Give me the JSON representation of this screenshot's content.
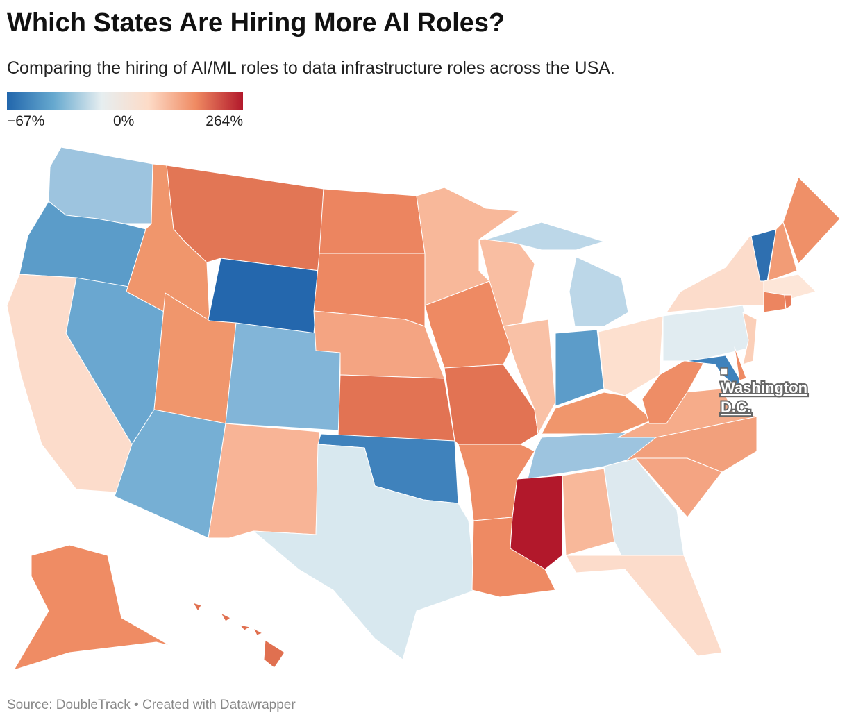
{
  "title": "Which States Are Hiring More AI Roles?",
  "subtitle": "Comparing the hiring of AI/ML roles to data infrastructure roles across the USA.",
  "legend": {
    "min_label": "−67%",
    "mid_label": "0%",
    "max_label": "264%",
    "colors": [
      "#2166ac",
      "#67a9cf",
      "#e6eef0",
      "#fddbc7",
      "#ef8a62",
      "#b2182b"
    ]
  },
  "annotation": {
    "line1": "Washington",
    "line2": "D.C."
  },
  "footer": "Source: DoubleTrack • Created with Datawrapper",
  "states": [
    {
      "id": "WA",
      "color": "#9dc4df"
    },
    {
      "id": "OR",
      "color": "#5b9cc9"
    },
    {
      "id": "CA",
      "color": "#fcdccb"
    },
    {
      "id": "NV",
      "color": "#6aa7d0"
    },
    {
      "id": "ID",
      "color": "#f0966c"
    },
    {
      "id": "MT",
      "color": "#e27655"
    },
    {
      "id": "WY",
      "color": "#2467ad"
    },
    {
      "id": "UT",
      "color": "#f0966c"
    },
    {
      "id": "CO",
      "color": "#82b5d8"
    },
    {
      "id": "AZ",
      "color": "#76afd4"
    },
    {
      "id": "NM",
      "color": "#f8b496"
    },
    {
      "id": "ND",
      "color": "#ec8560"
    },
    {
      "id": "SD",
      "color": "#ed8862"
    },
    {
      "id": "NE",
      "color": "#f4a482"
    },
    {
      "id": "KS",
      "color": "#e27353"
    },
    {
      "id": "OK",
      "color": "#3f82bc"
    },
    {
      "id": "TX",
      "color": "#d8e8ef"
    },
    {
      "id": "MN",
      "color": "#f8b89a"
    },
    {
      "id": "IA",
      "color": "#ee8a63"
    },
    {
      "id": "MO",
      "color": "#e27353"
    },
    {
      "id": "AR",
      "color": "#ee8d66"
    },
    {
      "id": "LA",
      "color": "#ee8a63"
    },
    {
      "id": "WI",
      "color": "#f9bea2"
    },
    {
      "id": "IL",
      "color": "#f9c1a6"
    },
    {
      "id": "MI-UP",
      "color": "#bcd7e8"
    },
    {
      "id": "MI",
      "color": "#bcd7e8"
    },
    {
      "id": "IN",
      "color": "#5c9cc9"
    },
    {
      "id": "OH",
      "color": "#fde0cf"
    },
    {
      "id": "KY",
      "color": "#f0966c"
    },
    {
      "id": "TN",
      "color": "#9dc4df"
    },
    {
      "id": "MS",
      "color": "#b2182b"
    },
    {
      "id": "AL",
      "color": "#f8b89a"
    },
    {
      "id": "GA",
      "color": "#dde9ef"
    },
    {
      "id": "FL",
      "color": "#fcdccb"
    },
    {
      "id": "SC",
      "color": "#f4a482"
    },
    {
      "id": "NC",
      "color": "#f2a07c"
    },
    {
      "id": "VA",
      "color": "#f6ac8a"
    },
    {
      "id": "WV",
      "color": "#ee8d66"
    },
    {
      "id": "PA",
      "color": "#e1ecf1"
    },
    {
      "id": "NY",
      "color": "#fcdccb"
    },
    {
      "id": "NJ",
      "color": "#fbcfb8"
    },
    {
      "id": "MD",
      "color": "#3f82bc"
    },
    {
      "id": "DE",
      "color": "#ee8a63"
    },
    {
      "id": "VT",
      "color": "#2e6fb0"
    },
    {
      "id": "NH",
      "color": "#f29c76"
    },
    {
      "id": "ME",
      "color": "#ef9068"
    },
    {
      "id": "MA",
      "color": "#fde6d8"
    },
    {
      "id": "CT",
      "color": "#ec8560"
    },
    {
      "id": "RI",
      "color": "#e87c5a"
    },
    {
      "id": "AK",
      "color": "#ef8c64"
    },
    {
      "id": "HI",
      "color": "#e07050"
    }
  ]
}
